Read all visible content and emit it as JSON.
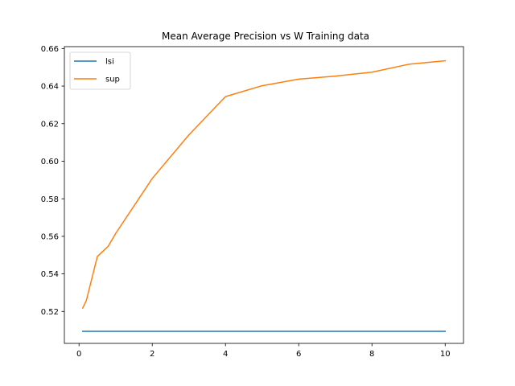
{
  "chart_data": {
    "type": "line",
    "title": "Mean Average Precision vs W Training data",
    "xlabel": "",
    "ylabel": "",
    "xlim": [
      -0.4,
      10.5
    ],
    "ylim": [
      0.503,
      0.661
    ],
    "xticks": [
      0,
      2,
      4,
      6,
      8,
      10
    ],
    "yticks": [
      0.52,
      0.54,
      0.56,
      0.58,
      0.6,
      0.62,
      0.64,
      0.66
    ],
    "xtick_labels": [
      "0",
      "2",
      "4",
      "6",
      "8",
      "10"
    ],
    "ytick_labels": [
      "0.52",
      "0.54",
      "0.56",
      "0.58",
      "0.60",
      "0.62",
      "0.64",
      "0.66"
    ],
    "grid": false,
    "legend_position": "top-left",
    "series": [
      {
        "name": "lsi",
        "color": "#1f77b4",
        "x": [
          0.1,
          0.2,
          0.5,
          0.8,
          1,
          2,
          3,
          4,
          5,
          6,
          7,
          8,
          9,
          10
        ],
        "y": [
          0.5094,
          0.5094,
          0.5094,
          0.5094,
          0.5094,
          0.5094,
          0.5094,
          0.5094,
          0.5094,
          0.5094,
          0.5094,
          0.5094,
          0.5094,
          0.5094
        ]
      },
      {
        "name": "sup",
        "color": "#ff7f0e",
        "x": [
          0.1,
          0.2,
          0.5,
          0.8,
          1,
          2,
          3,
          4,
          5,
          6,
          7,
          8,
          9,
          10
        ],
        "y": [
          0.5218,
          0.5258,
          0.5492,
          0.5548,
          0.5615,
          0.5908,
          0.614,
          0.6344,
          0.6402,
          0.6437,
          0.6453,
          0.6474,
          0.6516,
          0.6535
        ]
      }
    ]
  }
}
